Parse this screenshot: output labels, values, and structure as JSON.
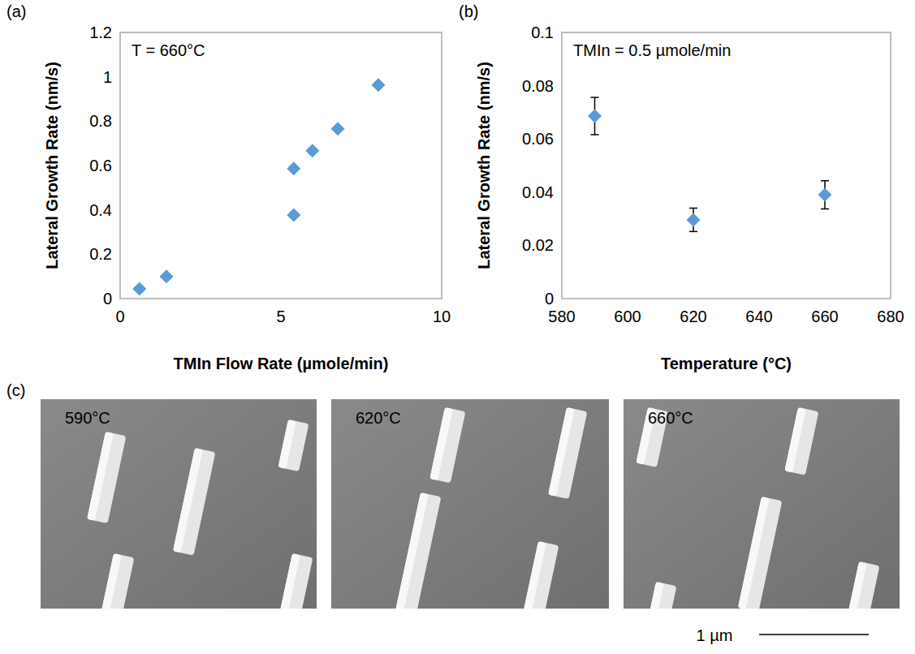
{
  "chart_data": [
    {
      "type": "scatter",
      "panel_label": "(a)",
      "annotations": [
        "T = 660°C"
      ],
      "x_label": "TMIn Flow Rate (µmole/min)",
      "y_label": "Lateral Growth Rate (nm/s)",
      "x": [
        0.6,
        1.44,
        5.4,
        5.4,
        5.98,
        6.77,
        8.03
      ],
      "values": [
        0.044,
        0.1,
        0.586,
        0.377,
        0.667,
        0.766,
        0.963
      ],
      "color": "#5b9bd5",
      "marker": "diamond",
      "xlim": [
        0,
        10
      ],
      "xticks": [
        0,
        5,
        10
      ],
      "ylim": [
        0,
        1.2
      ],
      "yticks": [
        0,
        0.2,
        0.4,
        0.6,
        0.8,
        1,
        1.2
      ],
      "grid": false
    },
    {
      "type": "scatter",
      "panel_label": "(b)",
      "annotations": [
        "TMIn = 0.5 µmole/min"
      ],
      "x_label": "Temperature (°C)",
      "y_label": "Lateral Growth Rate (nm/s)",
      "x": [
        590,
        620,
        660
      ],
      "values": [
        0.0686,
        0.0296,
        0.039
      ],
      "errors": [
        0.007,
        0.0044,
        0.0053
      ],
      "color": "#5b9bd5",
      "marker": "diamond",
      "xlim": [
        580,
        680
      ],
      "xticks": [
        580,
        600,
        620,
        640,
        660,
        680
      ],
      "ylim": [
        0,
        0.1
      ],
      "yticks": [
        0,
        0.02,
        0.04,
        0.06,
        0.08,
        0.1
      ],
      "grid": false
    }
  ],
  "panel_c": {
    "label": "(c)",
    "images": [
      {
        "label": "590°C"
      },
      {
        "label": "620°C"
      },
      {
        "label": "660°C"
      }
    ],
    "scale_bar": "1 µm"
  }
}
